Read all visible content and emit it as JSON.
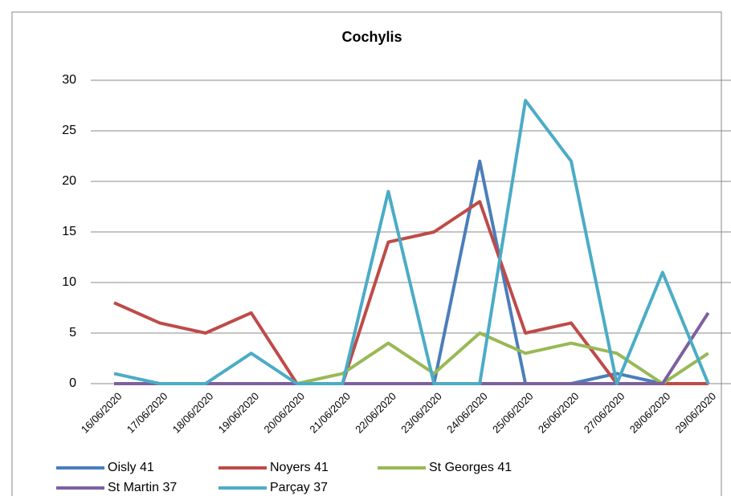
{
  "chart_data": {
    "type": "line",
    "title": "Cochylis",
    "categories": [
      "16/06/2020",
      "17/06/2020",
      "18/06/2020",
      "19/06/2020",
      "20/06/2020",
      "21/06/2020",
      "22/06/2020",
      "23/06/2020",
      "24/06/2020",
      "25/06/2020",
      "26/06/2020",
      "27/06/2020",
      "28/06/2020",
      "29/06/2020"
    ],
    "series": [
      {
        "name": "Oisly 41",
        "color": "#4a7ebb",
        "values": [
          0,
          0,
          0,
          0,
          0,
          0,
          0,
          0,
          22,
          0,
          0,
          1,
          0,
          0
        ]
      },
      {
        "name": "Noyers 41",
        "color": "#be4b48",
        "values": [
          8,
          6,
          5,
          7,
          0,
          0,
          14,
          15,
          18,
          5,
          6,
          0,
          0,
          0
        ]
      },
      {
        "name": "St Georges 41",
        "color": "#98b954",
        "values": [
          0,
          0,
          0,
          0,
          0,
          1,
          4,
          1,
          5,
          3,
          4,
          3,
          0,
          3
        ]
      },
      {
        "name": "St Martin 37",
        "color": "#7d60a0",
        "values": [
          0,
          0,
          0,
          0,
          0,
          0,
          0,
          0,
          0,
          0,
          0,
          0,
          0,
          7
        ]
      },
      {
        "name": "Parçay 37",
        "color": "#4bacc6",
        "values": [
          1,
          0,
          0,
          3,
          0,
          0,
          19,
          0,
          0,
          28,
          22,
          0,
          11,
          0
        ]
      }
    ],
    "ylim": [
      0,
      30
    ],
    "yticks": [
      0,
      5,
      10,
      15,
      20,
      25,
      30
    ],
    "grid": true,
    "legend": "bottom"
  }
}
